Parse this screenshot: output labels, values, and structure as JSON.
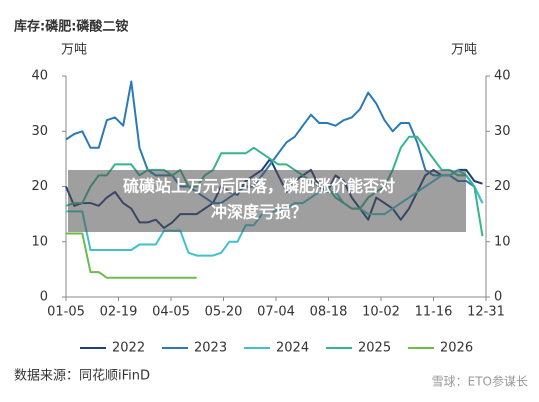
{
  "chart_data": {
    "type": "line",
    "title": "库存:磷肥:磷酸二铵",
    "ylabel": "万吨",
    "y2label": "万吨",
    "x": [
      5,
      12,
      19,
      26,
      33,
      40,
      47,
      54,
      61,
      68,
      75,
      82,
      89,
      96,
      103,
      110,
      117,
      124,
      131,
      138,
      145,
      152,
      159,
      166,
      173,
      180,
      187,
      194,
      201,
      208,
      215,
      222,
      229,
      236,
      243,
      250,
      257,
      264,
      271,
      278,
      285,
      292,
      299,
      306,
      313,
      320,
      327,
      334,
      341,
      348,
      355,
      362
    ],
    "xlim": [
      5,
      365
    ],
    "xticks": [
      {
        "value": 5,
        "label": "01-05"
      },
      {
        "value": 50,
        "label": "02-19"
      },
      {
        "value": 95,
        "label": "04-05"
      },
      {
        "value": 140,
        "label": "05-20"
      },
      {
        "value": 185,
        "label": "07-04"
      },
      {
        "value": 230,
        "label": "08-18"
      },
      {
        "value": 275,
        "label": "10-02"
      },
      {
        "value": 320,
        "label": "11-16"
      },
      {
        "value": 365,
        "label": "12-31"
      }
    ],
    "ylim": [
      0,
      40
    ],
    "yticks": [
      0,
      10,
      20,
      30,
      40
    ],
    "y2lim": [
      0,
      40
    ],
    "y2ticks": [
      0,
      10,
      20,
      30,
      40
    ],
    "series": [
      {
        "name": "2022",
        "color": "#1f3d7a",
        "values": [
          20,
          16.5,
          17,
          17,
          16.5,
          18,
          19,
          17,
          16,
          13.5,
          13.5,
          14,
          12.5,
          13.5,
          15,
          15,
          15,
          16,
          17,
          20,
          19,
          18.5,
          21,
          22,
          23,
          25,
          22,
          19,
          21,
          22,
          23,
          20,
          19,
          22,
          21,
          18,
          16,
          14,
          18,
          17,
          16,
          14,
          16,
          19,
          22,
          23,
          22,
          22,
          23,
          23,
          21,
          20.5
        ]
      },
      {
        "name": "2023",
        "color": "#2a7ab8",
        "values": [
          28.5,
          29.5,
          30,
          27,
          27,
          32,
          32.5,
          31,
          39,
          27,
          23,
          22,
          22,
          22,
          20,
          20,
          19,
          18,
          17,
          17,
          18,
          19,
          20,
          20,
          22,
          24,
          26,
          28,
          29,
          31,
          33,
          31.5,
          31.5,
          31,
          32,
          32.5,
          34,
          37,
          35,
          32,
          30,
          31.5,
          31.5,
          28,
          23,
          22,
          22,
          22,
          21,
          21,
          20,
          17
        ]
      },
      {
        "name": "2024",
        "color": "#3fc1c9",
        "values": [
          15.5,
          15.5,
          15.5,
          8.5,
          8.5,
          8.5,
          8.5,
          8.5,
          8.5,
          9.5,
          9.5,
          9.5,
          12,
          12,
          12,
          8,
          7.5,
          7.5,
          7.5,
          8,
          10,
          10,
          13,
          13,
          15,
          15,
          16,
          16,
          17,
          17,
          18,
          19,
          19,
          19,
          17,
          16,
          16,
          15,
          15,
          15,
          16,
          17,
          18,
          19,
          20,
          21,
          22,
          22,
          23,
          22,
          20,
          17
        ]
      },
      {
        "name": "2025",
        "color": "#35b58a",
        "values": [
          16.5,
          17,
          17,
          20,
          22,
          22,
          24,
          24,
          24,
          22,
          23,
          23,
          23,
          22,
          23,
          20,
          20,
          22,
          23,
          26,
          26,
          26,
          26,
          27,
          26,
          25,
          24,
          24,
          23,
          22,
          21,
          20,
          20,
          18,
          17,
          16,
          16,
          18,
          19,
          20,
          23,
          27,
          29,
          29,
          27,
          25,
          23,
          23,
          22,
          22,
          20,
          11
        ]
      },
      {
        "name": "2026",
        "color": "#6dbb4a",
        "values": [
          11.5,
          11.5,
          11.5,
          4.5,
          4.5,
          3.5,
          3.5,
          3.5,
          3.5,
          3.5,
          3.5,
          3.5,
          3.5,
          3.5,
          3.5,
          3.5,
          3.5,
          null,
          null,
          null,
          null,
          null,
          null,
          null,
          null,
          null,
          null,
          null,
          null,
          null,
          null,
          null,
          null,
          null,
          null,
          null,
          null,
          null,
          null,
          null,
          null,
          null,
          null,
          null,
          null,
          null,
          null,
          null,
          null,
          null,
          null,
          null
        ]
      }
    ]
  },
  "source": "数据来源：同花顺iFinD",
  "watermark": "雪球：ETO参谋长",
  "overlay": {
    "lines": [
      "硫磺站上万元后回落，磷肥涨价能否对",
      "冲深度亏损？"
    ]
  }
}
